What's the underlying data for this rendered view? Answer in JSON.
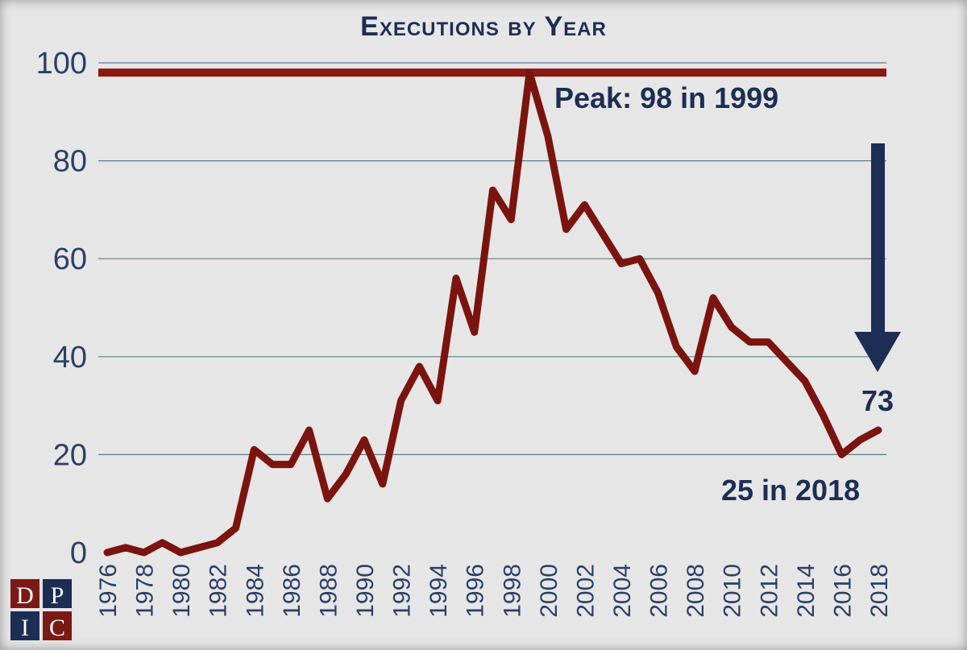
{
  "chart_data": {
    "type": "line",
    "title": "Executions by Year",
    "xlabel": "",
    "ylabel": "",
    "ylim": [
      0,
      100
    ],
    "yticks": [
      0,
      20,
      40,
      60,
      80,
      100
    ],
    "grid": true,
    "x": [
      1976,
      1977,
      1978,
      1979,
      1980,
      1981,
      1982,
      1983,
      1984,
      1985,
      1986,
      1987,
      1988,
      1989,
      1990,
      1991,
      1992,
      1993,
      1994,
      1995,
      1996,
      1997,
      1998,
      1999,
      2000,
      2001,
      2002,
      2003,
      2004,
      2005,
      2006,
      2007,
      2008,
      2009,
      2010,
      2011,
      2012,
      2013,
      2014,
      2015,
      2016,
      2017,
      2018
    ],
    "xtick_labels": [
      "1976",
      "1978",
      "1980",
      "1982",
      "1984",
      "1986",
      "1988",
      "1990",
      "1992",
      "1994",
      "1996",
      "1998",
      "2000",
      "2002",
      "2004",
      "2006",
      "2008",
      "2010",
      "2012",
      "2014",
      "2016",
      "2018"
    ],
    "series": [
      {
        "name": "Executions",
        "values": [
          0,
          1,
          0,
          2,
          0,
          1,
          2,
          5,
          21,
          18,
          18,
          25,
          11,
          16,
          23,
          14,
          31,
          38,
          31,
          56,
          45,
          74,
          68,
          98,
          85,
          66,
          71,
          65,
          59,
          60,
          53,
          42,
          37,
          52,
          46,
          43,
          43,
          39,
          35,
          28,
          20,
          23,
          25
        ]
      }
    ],
    "peak_line_value": 98,
    "annotations": {
      "peak": "Peak: 98 in 1999",
      "current": "25 in 2018",
      "decline": "73"
    }
  },
  "logo": {
    "letters": [
      "D",
      "P",
      "I",
      "C"
    ]
  },
  "colors": {
    "line": "#7b140e",
    "peak_line": "#8a1811",
    "navy": "#1c2e54",
    "axis_text": "#2b4066",
    "grid": "#5f7d86",
    "background": "#e6e6e6",
    "logo_red": "#7b1a14"
  }
}
